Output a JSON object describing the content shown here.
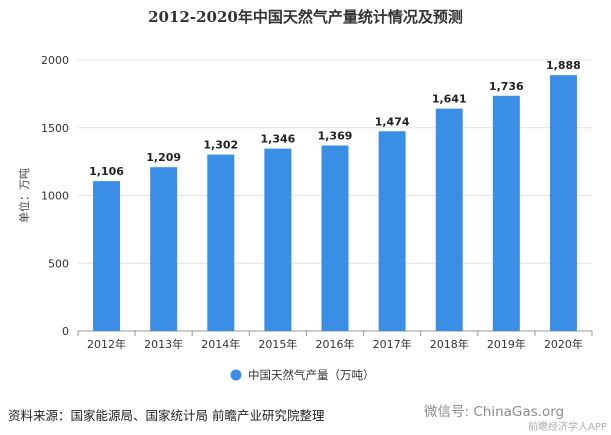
{
  "chart_data": {
    "type": "bar",
    "title": "2012-2020年中国天然气产量统计情况及预测",
    "categories": [
      "2012年",
      "2013年",
      "2014年",
      "2015年",
      "2016年",
      "2017年",
      "2018年",
      "2019年",
      "2020年"
    ],
    "series": [
      {
        "name": "中国天然气产量（万吨）",
        "values": [
          1106,
          1209,
          1302,
          1346,
          1369,
          1474,
          1641,
          1736,
          1888
        ],
        "labels": [
          "1,106",
          "1,209",
          "1,302",
          "1,346",
          "1,369",
          "1,474",
          "1,641",
          "1,736",
          "1,888"
        ]
      }
    ],
    "ylabel": "单位：万吨",
    "ylim": [
      0,
      2000
    ],
    "yticks": [
      0,
      500,
      1000,
      1500,
      2000
    ],
    "grid": true,
    "legend": "bottom-center",
    "bar_color": "#3a8ee6"
  },
  "source_text": "资料来源：国家能源局、国家统计局 前瞻产业研究院整理",
  "watermark_text": "微信号: ChinaGas.org",
  "watermark_sub": "前瞻经济学人APP"
}
